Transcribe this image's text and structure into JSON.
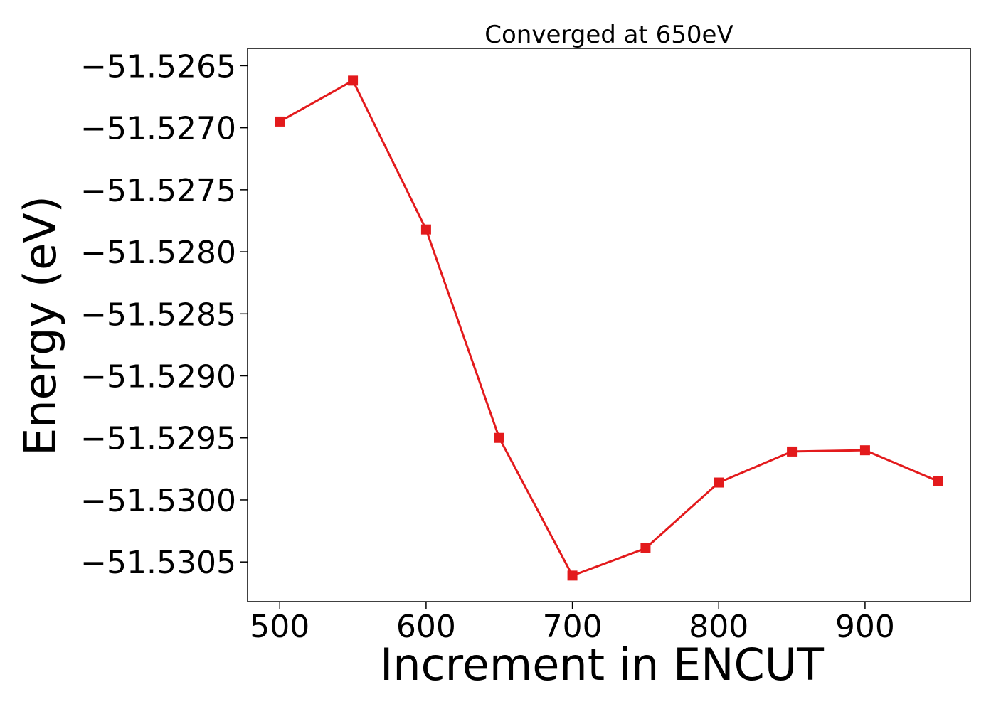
{
  "chart_data": {
    "type": "line",
    "title": "Converged at 650eV",
    "xlabel": "Increment in ENCUT",
    "ylabel": "Energy (eV)",
    "x": [
      500,
      550,
      600,
      650,
      700,
      750,
      800,
      850,
      900,
      950
    ],
    "series": [
      {
        "values": [
          -51.52695,
          -51.52662,
          -51.52782,
          -51.5295,
          -51.53061,
          -51.53039,
          -51.52986,
          -51.52961,
          -51.5296,
          -51.52985
        ],
        "color": "#e31a1c",
        "marker": "square"
      }
    ],
    "xlim": [
      478,
      972
    ],
    "ylim": [
      -51.53082,
      -51.52636
    ],
    "xticks": [
      500,
      600,
      700,
      800,
      900
    ],
    "xtick_labels": [
      "500",
      "600",
      "700",
      "800",
      "900"
    ],
    "yticks": [
      -51.5305,
      -51.53,
      -51.5295,
      -51.529,
      -51.5285,
      -51.528,
      -51.5275,
      -51.527,
      -51.5265
    ],
    "ytick_labels": [
      "−51.5305",
      "−51.5300",
      "−51.5295",
      "−51.5290",
      "−51.5285",
      "−51.5280",
      "−51.5275",
      "−51.5270",
      "−51.5265"
    ],
    "grid": false,
    "legend": "none"
  }
}
